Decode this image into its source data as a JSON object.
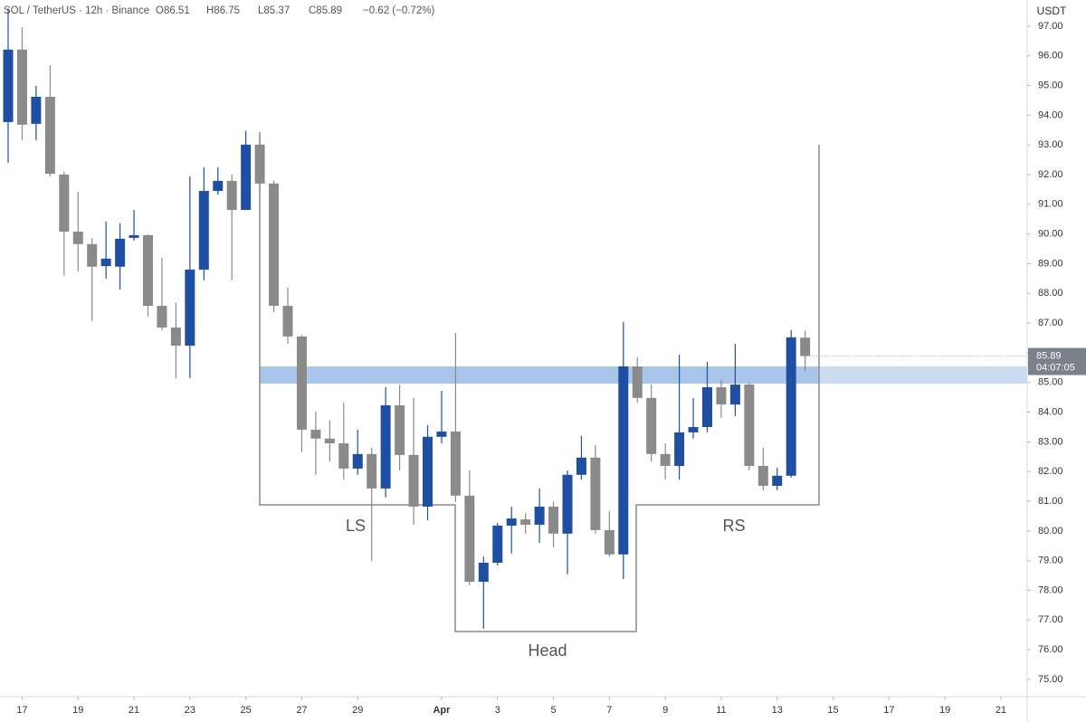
{
  "chart_data": {
    "type": "candlestick",
    "title": "SOL / TetherUS · 12h · Binance",
    "ohlc_labels": [
      "O86.51",
      "H86.75",
      "L85.37",
      "C85.89"
    ],
    "change": "−0.62 (−0.72%)",
    "currency": "USDT",
    "countdown": "04:07:05",
    "annotations": [
      "LS",
      "Head",
      "RS"
    ],
    "up_color": "#1f4fa3",
    "down_color": "#8a8a8a",
    "categories": [
      null,
      "17",
      null,
      null,
      null,
      "19",
      null,
      null,
      null,
      "21",
      null,
      null,
      null,
      "23",
      null,
      null,
      null,
      "25",
      null,
      null,
      null,
      "27",
      null,
      null,
      null,
      "29",
      null,
      null,
      null,
      null,
      null,
      "Apr",
      null,
      null,
      null,
      "3",
      null,
      null,
      null,
      "5",
      null,
      null,
      null,
      "7",
      null,
      null,
      null,
      "9",
      null,
      null,
      null,
      "11",
      null,
      null,
      null,
      "13",
      null,
      null,
      null,
      "15",
      null,
      null,
      null,
      "17",
      null,
      null,
      null,
      "19",
      null,
      null,
      null,
      "21",
      null
    ],
    "open": [
      93.77,
      96.21,
      93.71,
      94.62,
      92.0,
      90.08,
      89.66,
      88.92,
      88.9,
      89.87,
      89.96,
      87.58,
      86.85,
      86.24,
      88.8,
      91.45,
      91.79,
      90.81,
      93.01,
      91.7,
      87.58,
      86.55,
      83.41,
      83.11,
      82.95,
      82.1,
      82.59,
      81.43,
      84.23,
      82.56,
      80.82,
      83.17,
      83.35,
      81.19,
      78.29,
      78.93,
      80.18,
      80.39,
      80.21,
      80.82,
      79.91,
      81.89,
      82.47,
      80.03,
      79.21,
      85.54,
      84.48,
      82.59,
      82.19,
      83.32,
      83.5,
      84.84,
      84.26,
      84.93,
      82.19,
      81.52,
      81.86,
      86.51,
      null,
      null,
      null,
      null,
      null,
      null,
      null,
      null,
      null,
      null,
      null,
      null,
      null,
      null,
      null
    ],
    "high": [
      97.6,
      96.97,
      94.99,
      95.69,
      92.1,
      91.42,
      89.86,
      90.42,
      90.36,
      90.81,
      89.99,
      89.2,
      87.68,
      91.94,
      92.25,
      92.25,
      92.0,
      93.47,
      93.37,
      91.8,
      88.2,
      86.6,
      84.02,
      83.72,
      84.32,
      83.41,
      82.8,
      84.84,
      84.93,
      84.48,
      83.56,
      84.72,
      86.67,
      82.04,
      79.14,
      80.27,
      80.82,
      80.6,
      81.43,
      81.0,
      82.04,
      83.2,
      82.89,
      80.67,
      87.04,
      85.85,
      84.93,
      82.95,
      85.94,
      84.48,
      85.7,
      85.09,
      86.3,
      85.0,
      82.8,
      82.13,
      86.76,
      86.75,
      null,
      null,
      null,
      null,
      null,
      null,
      null,
      null,
      null,
      null,
      null,
      null,
      null,
      null,
      null
    ],
    "low": [
      92.4,
      93.16,
      93.16,
      91.94,
      88.6,
      88.74,
      87.07,
      88.5,
      88.13,
      89.78,
      87.22,
      86.76,
      85.15,
      85.15,
      88.44,
      91.33,
      88.44,
      90.81,
      91.33,
      87.37,
      86.3,
      82.65,
      81.89,
      82.34,
      81.73,
      81.89,
      78.99,
      81.13,
      82.04,
      80.21,
      80.36,
      82.95,
      80.97,
      78.17,
      76.71,
      78.84,
      79.24,
      79.91,
      79.6,
      79.45,
      78.54,
      81.73,
      79.91,
      79.14,
      78.38,
      84.32,
      82.34,
      81.73,
      81.73,
      83.11,
      83.32,
      83.81,
      83.87,
      82.04,
      81.37,
      81.37,
      81.8,
      85.37,
      null,
      null,
      null,
      null,
      null,
      null,
      null,
      null,
      null,
      null,
      null,
      null,
      null,
      null,
      null
    ],
    "close": [
      96.21,
      93.68,
      94.62,
      92.03,
      90.08,
      89.66,
      88.9,
      89.17,
      89.84,
      89.96,
      87.58,
      86.85,
      86.24,
      88.8,
      91.45,
      91.79,
      90.81,
      93.01,
      91.7,
      87.58,
      86.55,
      83.41,
      83.11,
      82.95,
      82.1,
      82.59,
      81.43,
      84.23,
      82.56,
      80.82,
      83.17,
      83.35,
      81.19,
      78.29,
      78.93,
      80.18,
      80.42,
      80.21,
      80.82,
      79.91,
      81.89,
      82.47,
      80.03,
      79.21,
      85.54,
      84.48,
      82.59,
      82.19,
      83.32,
      83.5,
      84.84,
      84.26,
      84.93,
      82.19,
      81.52,
      81.86,
      86.52,
      85.89,
      null,
      null,
      null,
      null,
      null,
      null,
      null,
      null,
      null,
      null,
      null,
      null,
      null,
      null,
      null
    ],
    "ylim": [
      74.42,
      97.88
    ],
    "yticks": [
      {
        "value": 75,
        "label": "75.00"
      },
      {
        "value": 76,
        "label": "76.00"
      },
      {
        "value": 77,
        "label": "77.00"
      },
      {
        "value": 78,
        "label": "78.00"
      },
      {
        "value": 79,
        "label": "79.00"
      },
      {
        "value": 80,
        "label": "80.00"
      },
      {
        "value": 81,
        "label": "81.00"
      },
      {
        "value": 82,
        "label": "82.00"
      },
      {
        "value": 83,
        "label": "83.00"
      },
      {
        "value": 84,
        "label": "84.00"
      },
      {
        "value": 85,
        "label": "85.00"
      },
      {
        "value": 86,
        "label": "86.00"
      },
      {
        "value": 87,
        "label": "87.00"
      },
      {
        "value": 88,
        "label": "88.00"
      },
      {
        "value": 89,
        "label": "89.00"
      },
      {
        "value": 90,
        "label": "90.00"
      },
      {
        "value": 91,
        "label": "91.00"
      },
      {
        "value": 92,
        "label": "92.00"
      },
      {
        "value": 93,
        "label": "93.00"
      },
      {
        "value": 94,
        "label": "94.00"
      },
      {
        "value": 95,
        "label": "95.00"
      },
      {
        "value": 96,
        "label": "96.00"
      },
      {
        "value": 97,
        "label": "97.00"
      }
    ]
  }
}
